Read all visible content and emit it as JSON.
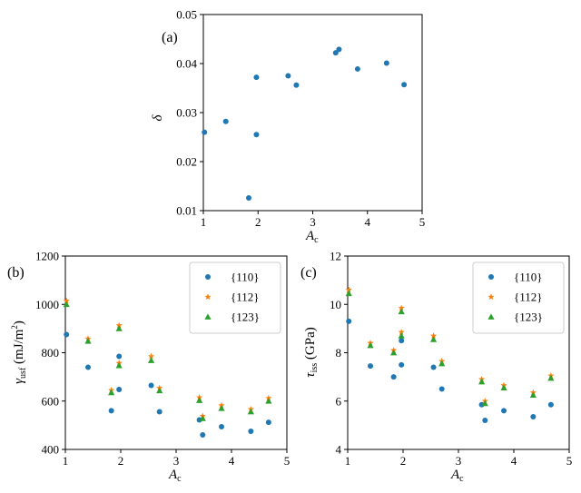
{
  "chart_data": [
    {
      "id": "a",
      "type": "scatter",
      "panel_label": "(a)",
      "xlabel": "A_c",
      "ylabel": "δ",
      "xlim": [
        1,
        5
      ],
      "ylim": [
        0.01,
        0.05
      ],
      "xticks": [
        1,
        2,
        3,
        4,
        5
      ],
      "yticks": [
        0.01,
        0.02,
        0.03,
        0.04,
        0.05
      ],
      "ytick_labels": [
        "0.01",
        "0.02",
        "0.03",
        "0.04",
        "0.05"
      ],
      "series": [
        {
          "name": "δ",
          "marker": "circle",
          "color": "#1f77b4",
          "x": [
            1.02,
            1.41,
            1.83,
            1.97,
            1.97,
            2.55,
            2.7,
            3.42,
            3.48,
            3.82,
            4.35,
            4.67
          ],
          "y": [
            0.026,
            0.0282,
            0.0126,
            0.0372,
            0.0255,
            0.0375,
            0.0356,
            0.0422,
            0.0429,
            0.0389,
            0.0401,
            0.0357
          ]
        }
      ]
    },
    {
      "id": "b",
      "type": "scatter",
      "panel_label": "(b)",
      "xlabel": "A_c",
      "ylabel": "γusf (mJ/m²)",
      "xlim": [
        1,
        5
      ],
      "ylim": [
        400,
        1200
      ],
      "xticks": [
        1,
        2,
        3,
        4,
        5
      ],
      "yticks": [
        400,
        600,
        800,
        1000,
        1200
      ],
      "ytick_labels": [
        "400",
        "600",
        "800",
        "1000",
        "1200"
      ],
      "legend": [
        "{110}",
        "{112}",
        "{123}"
      ],
      "series": [
        {
          "name": "{110}",
          "marker": "circle",
          "color": "#1f77b4",
          "x": [
            1.02,
            1.41,
            1.83,
            1.97,
            1.97,
            2.55,
            2.7,
            3.42,
            3.48,
            3.82,
            4.35,
            4.67
          ],
          "y": [
            875,
            740,
            560,
            785,
            648,
            665,
            556,
            522,
            460,
            494,
            475,
            512
          ]
        },
        {
          "name": "{112}",
          "marker": "star",
          "color": "#ff7f0e",
          "x": [
            1.02,
            1.41,
            1.83,
            1.97,
            1.97,
            2.55,
            2.7,
            3.42,
            3.48,
            3.82,
            4.35,
            4.67
          ],
          "y": [
            1015,
            858,
            645,
            913,
            757,
            785,
            654,
            615,
            538,
            582,
            566,
            612
          ]
        },
        {
          "name": "{123}",
          "marker": "triangle",
          "color": "#2ca02c",
          "x": [
            1.02,
            1.41,
            1.83,
            1.97,
            1.97,
            2.55,
            2.7,
            3.42,
            3.48,
            3.82,
            4.35,
            4.67
          ],
          "y": [
            1000,
            848,
            635,
            900,
            747,
            768,
            643,
            603,
            528,
            570,
            556,
            600
          ]
        }
      ]
    },
    {
      "id": "c",
      "type": "scatter",
      "panel_label": "(c)",
      "xlabel": "A_c",
      "ylabel": "τiss (GPa)",
      "xlim": [
        1,
        5
      ],
      "ylim": [
        4,
        12
      ],
      "xticks": [
        1,
        2,
        3,
        4,
        5
      ],
      "yticks": [
        4,
        6,
        8,
        10,
        12
      ],
      "ytick_labels": [
        "4",
        "6",
        "8",
        "10",
        "12"
      ],
      "legend": [
        "{110}",
        "{112}",
        "{123}"
      ],
      "series": [
        {
          "name": "{110}",
          "marker": "circle",
          "color": "#1f77b4",
          "x": [
            1.02,
            1.41,
            1.83,
            1.97,
            1.97,
            2.55,
            2.7,
            3.42,
            3.48,
            3.82,
            4.35,
            4.67
          ],
          "y": [
            9.3,
            7.45,
            7.0,
            8.5,
            7.5,
            7.4,
            6.5,
            5.85,
            5.2,
            5.6,
            5.35,
            5.85
          ]
        },
        {
          "name": "{112}",
          "marker": "star",
          "color": "#ff7f0e",
          "x": [
            1.02,
            1.41,
            1.83,
            1.97,
            1.97,
            2.55,
            2.7,
            3.42,
            3.48,
            3.82,
            4.35,
            4.67
          ],
          "y": [
            10.6,
            8.4,
            8.1,
            9.85,
            8.85,
            8.7,
            7.65,
            6.9,
            6.0,
            6.65,
            6.35,
            7.05
          ]
        },
        {
          "name": "{123}",
          "marker": "triangle",
          "color": "#2ca02c",
          "x": [
            1.02,
            1.41,
            1.83,
            1.97,
            1.97,
            2.55,
            2.7,
            3.42,
            3.48,
            3.82,
            4.35,
            4.67
          ],
          "y": [
            10.45,
            8.3,
            8.0,
            9.7,
            8.7,
            8.55,
            7.55,
            6.8,
            5.9,
            6.55,
            6.25,
            6.95
          ]
        }
      ]
    }
  ]
}
